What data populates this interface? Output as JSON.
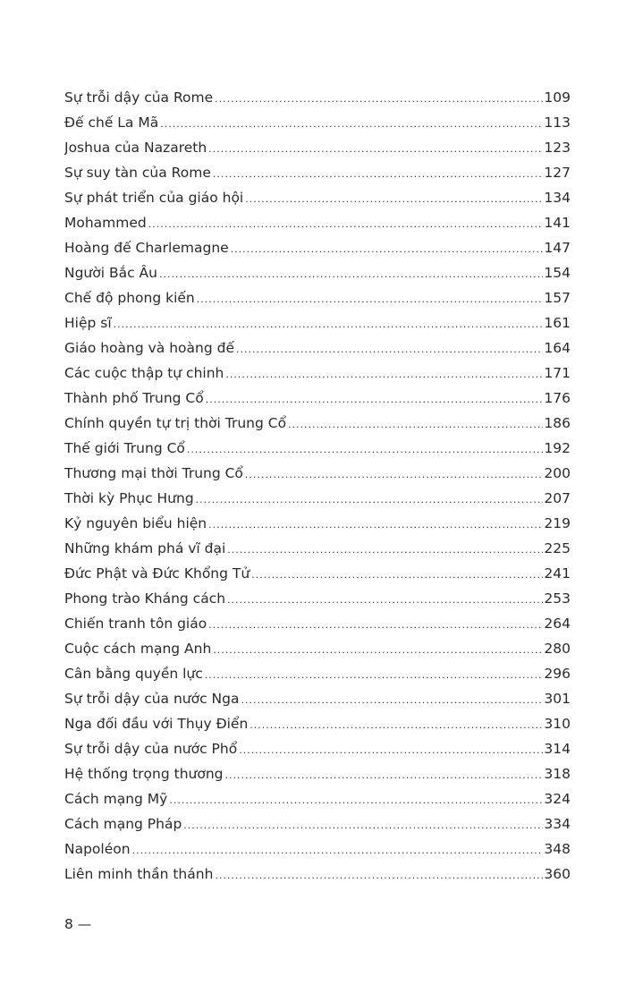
{
  "toc": [
    {
      "title": "Sự trỗi dậy của Rome",
      "page": "109"
    },
    {
      "title": "Đế chế La Mã",
      "page": "113"
    },
    {
      "title": "Joshua của Nazareth",
      "page": "123"
    },
    {
      "title": "Sự suy tàn của Rome",
      "page": "127"
    },
    {
      "title": "Sự phát triển của giáo hội",
      "page": "134"
    },
    {
      "title": "Mohammed",
      "page": "141"
    },
    {
      "title": "Hoàng đế Charlemagne",
      "page": "147"
    },
    {
      "title": "Người Bắc Âu",
      "page": "154"
    },
    {
      "title": "Chế độ phong kiến",
      "page": "157"
    },
    {
      "title": "Hiệp sĩ",
      "page": "161"
    },
    {
      "title": "Giáo hoàng và hoàng đế",
      "page": "164"
    },
    {
      "title": "Các cuộc thập tự chinh",
      "page": "171"
    },
    {
      "title": "Thành phố Trung Cổ",
      "page": "176"
    },
    {
      "title": "Chính quyền tự trị thời Trung Cổ",
      "page": "186"
    },
    {
      "title": "Thế giới Trung Cổ",
      "page": "192"
    },
    {
      "title": "Thương mại thời Trung Cổ",
      "page": "200"
    },
    {
      "title": "Thời kỳ Phục Hưng",
      "page": "207"
    },
    {
      "title": "Kỷ nguyên biểu hiện",
      "page": "219"
    },
    {
      "title": "Những khám phá vĩ đại",
      "page": "225"
    },
    {
      "title": "Đức Phật và Đức Khổng Tử",
      "page": "241"
    },
    {
      "title": "Phong trào Kháng cách",
      "page": "253"
    },
    {
      "title": "Chiến tranh tôn giáo",
      "page": "264"
    },
    {
      "title": "Cuộc cách mạng Anh",
      "page": "280"
    },
    {
      "title": "Cân bằng quyền lực",
      "page": "296"
    },
    {
      "title": "Sự trỗi dậy của nước Nga",
      "page": "301"
    },
    {
      "title": "Nga đối đầu với Thụy Điển",
      "page": "310"
    },
    {
      "title": "Sự trỗi dậy của nước Phổ",
      "page": "314"
    },
    {
      "title": "Hệ thống trọng thương",
      "page": "318"
    },
    {
      "title": "Cách mạng Mỹ",
      "page": "324"
    },
    {
      "title": "Cách mạng Pháp",
      "page": "334"
    },
    {
      "title": "Napoléon",
      "page": "348"
    },
    {
      "title": "Liên minh thần thánh",
      "page": "360"
    }
  ],
  "footer": {
    "page_number": "8 —"
  }
}
